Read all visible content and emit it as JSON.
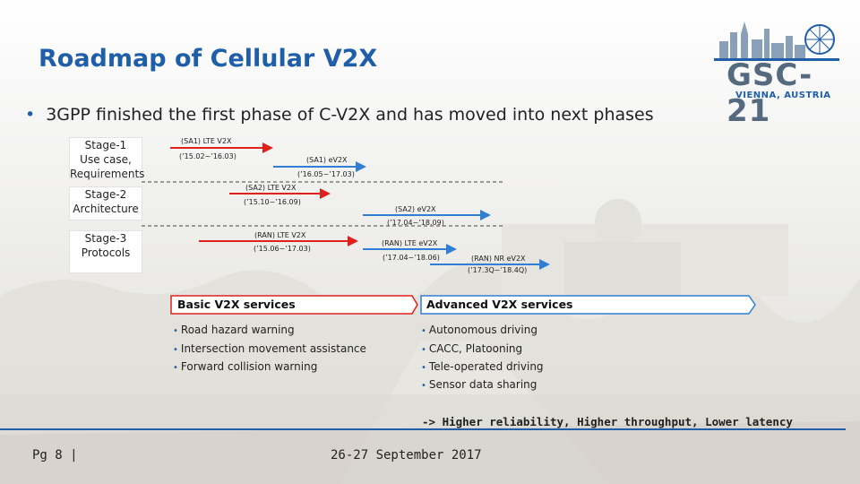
{
  "slide": {
    "title": "Roadmap of Cellular V2X",
    "bullet": "3GPP finished the first phase of C-V2X and has moved into next phases"
  },
  "logo": {
    "name": "GSC-21",
    "location": "VIENNA, AUSTRIA"
  },
  "stages": [
    {
      "line1": "Stage-1",
      "line2": "Use case,",
      "line3": "Requirements"
    },
    {
      "line1": "Stage-2",
      "line2": "Architecture"
    },
    {
      "line1": "Stage-3",
      "line2": "Protocols"
    }
  ],
  "roadmap": [
    {
      "label": "(SA1) LTE V2X",
      "period": "(’15.02~’16.03)",
      "color": "#e0201b"
    },
    {
      "label": "(SA1) eV2X",
      "period": "(’16.05~’17.03)",
      "color": "#2f7fd6"
    },
    {
      "label": "(SA2) LTE V2X",
      "period": "(’15.10~’16.09)",
      "color": "#e0201b"
    },
    {
      "label": "(SA2) eV2X",
      "period": "(’17.04~’18.09)",
      "color": "#2f7fd6"
    },
    {
      "label": "(RAN) LTE V2X",
      "period": "(’15.06~’17.03)",
      "color": "#e0201b"
    },
    {
      "label": "(RAN) LTE eV2X",
      "period": "(’17.04~’18.06)",
      "color": "#2f7fd6"
    },
    {
      "label": "(RAN) NR eV2X",
      "period": "(’17.3Q~’18.4Q)",
      "color": "#2f7fd6"
    }
  ],
  "basic": {
    "header": "Basic V2X services",
    "items": [
      "Road hazard warning",
      "Intersection movement assistance",
      "Forward collision warning"
    ]
  },
  "advanced": {
    "header": "Advanced V2X services",
    "items": [
      "Autonomous driving",
      "CACC, Platooning",
      "Tele-operated driving",
      "Sensor data sharing"
    ]
  },
  "note": "-> Higher reliability, Higher throughput, Lower latency",
  "footer": {
    "page": "Pg 8 |",
    "date": "26-27 September 2017"
  }
}
